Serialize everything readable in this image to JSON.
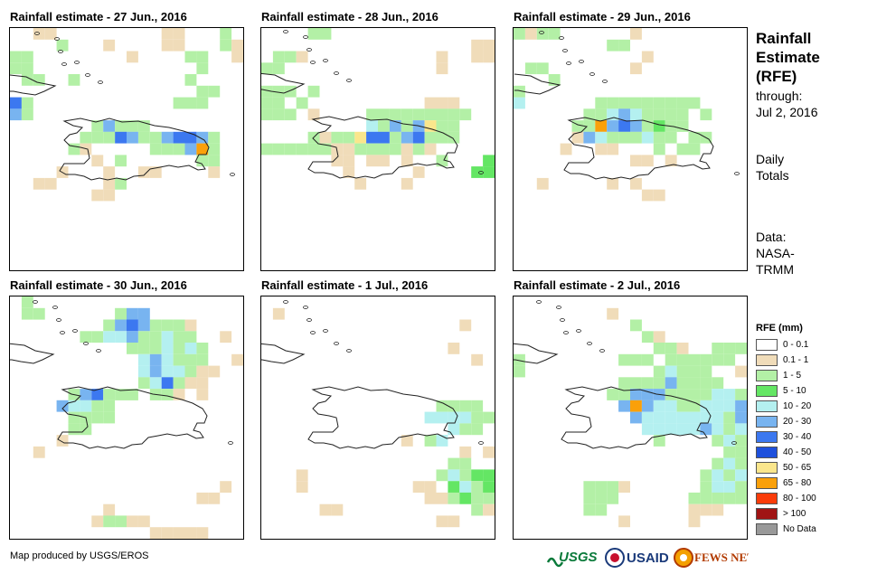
{
  "panels": [
    {
      "title": "Rainfall estimate - 27 Jun., 2016"
    },
    {
      "title": "Rainfall estimate - 28 Jun., 2016"
    },
    {
      "title": "Rainfall estimate - 29 Jun., 2016"
    },
    {
      "title": "Rainfall estimate - 30 Jun., 2016"
    },
    {
      "title": "Rainfall estimate - 1 Jul., 2016"
    },
    {
      "title": "Rainfall estimate - 2 Jul., 2016"
    }
  ],
  "side": {
    "title_lines": [
      "Rainfall",
      "Estimate",
      "(RFE)"
    ],
    "through_lines": [
      "through:",
      "Jul 2, 2016"
    ],
    "totals_lines": [
      "Daily",
      "Totals"
    ],
    "data_lines": [
      "Data:",
      "NASA-",
      "TRMM"
    ]
  },
  "legend": {
    "title": "RFE (mm)",
    "items": [
      {
        "label": "0 - 0.1",
        "color": "#ffffff"
      },
      {
        "label": "0.1 - 1",
        "color": "#f0dcb9"
      },
      {
        "label": "1 - 5",
        "color": "#b3f0a6"
      },
      {
        "label": "5 - 10",
        "color": "#64e664"
      },
      {
        "label": "10 - 20",
        "color": "#b4f0f0"
      },
      {
        "label": "20 - 30",
        "color": "#78b4f0"
      },
      {
        "label": "30 - 40",
        "color": "#3c78f0"
      },
      {
        "label": "40 - 50",
        "color": "#1e50dc"
      },
      {
        "label": "50 - 65",
        "color": "#fae68c"
      },
      {
        "label": "65 - 80",
        "color": "#faa00a"
      },
      {
        "label": "80 - 100",
        "color": "#fa3c0a"
      },
      {
        "label": "> 100",
        "color": "#a01414"
      },
      {
        "label": "No Data",
        "color": "#999999"
      }
    ]
  },
  "credit": "Map produced by USGS/EROS",
  "logos": {
    "usgs": "USGS",
    "usaid": "USAID",
    "fewsnet": "FEWS NET"
  }
}
